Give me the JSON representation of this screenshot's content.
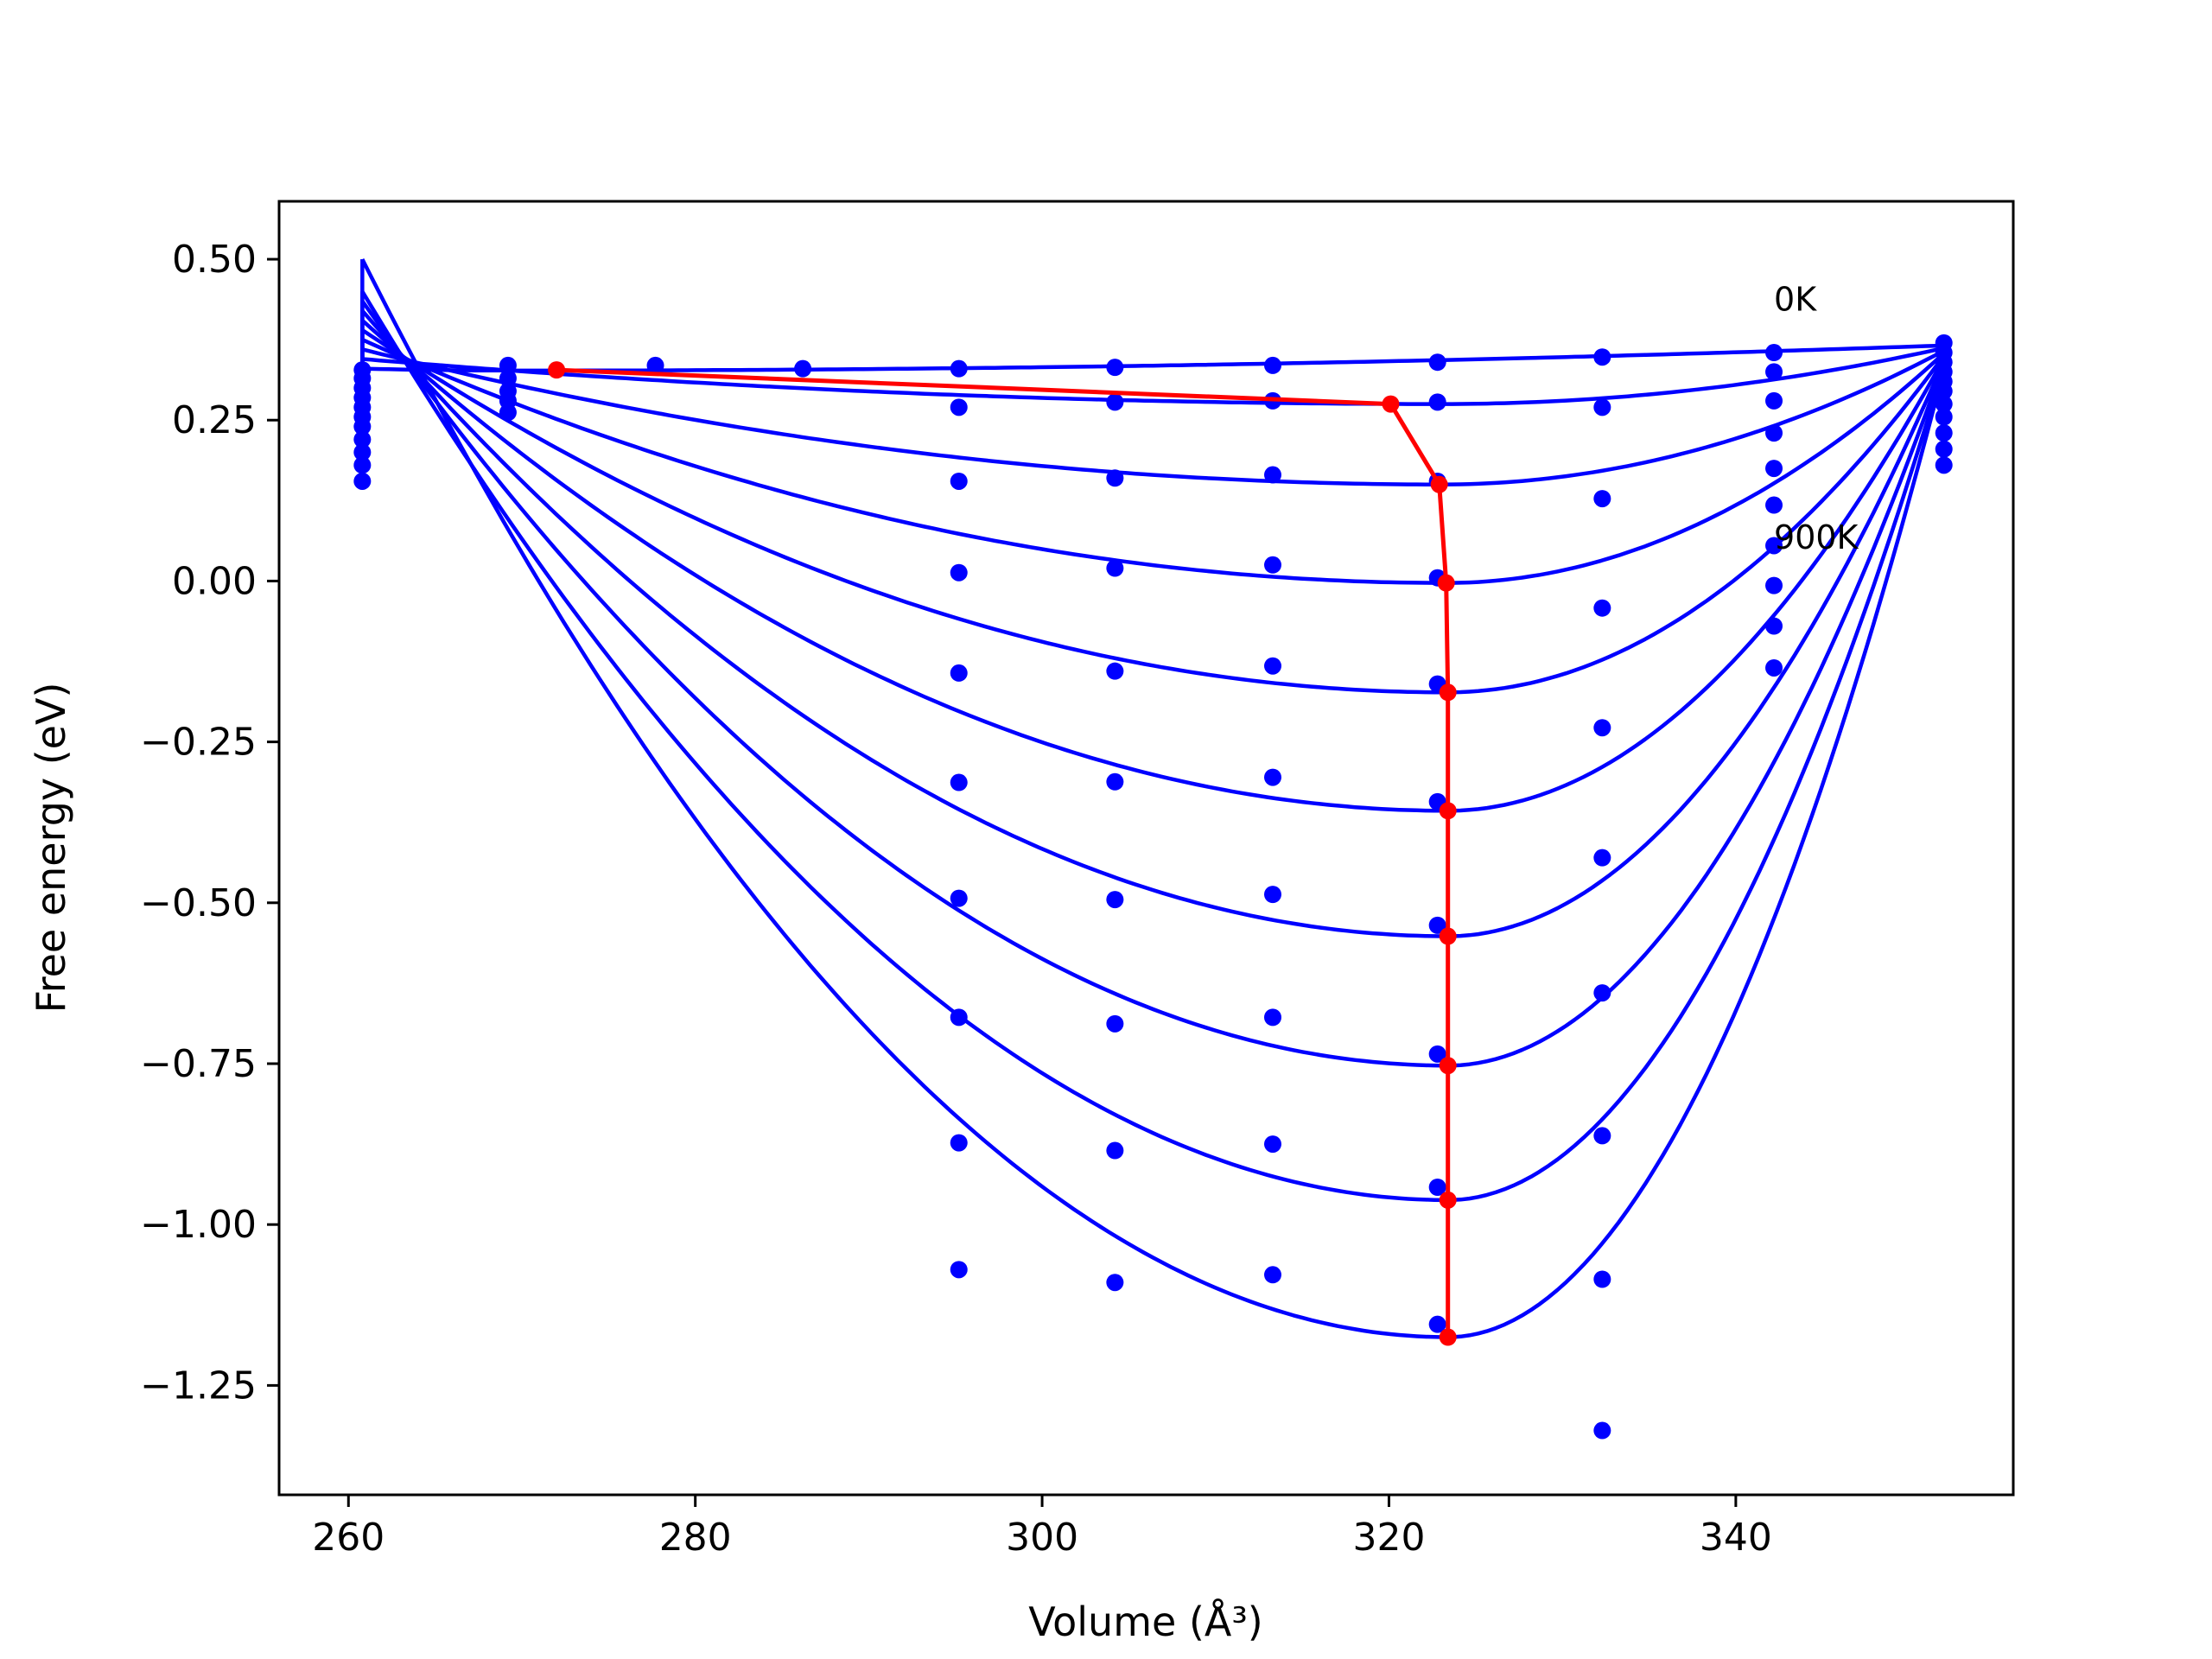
{
  "chart_data": {
    "type": "line",
    "xlabel": "Volume (Å³)",
    "ylabel": "Free energy (eV)",
    "xlim": [
      256,
      356
    ],
    "ylim": [
      -1.42,
      0.59
    ],
    "xticks": [
      260,
      280,
      300,
      320,
      340
    ],
    "yticks": [
      0.5,
      0.25,
      0.0,
      -0.25,
      -0.5,
      -0.75,
      -1.0,
      -1.25
    ],
    "xtick_labels": [
      "260",
      "280",
      "300",
      "320",
      "340"
    ],
    "ytick_labels": [
      "0.50",
      "0.25",
      "0.00",
      "−0.25",
      "−0.50",
      "−0.75",
      "−1.00",
      "−1.25"
    ],
    "grid": false,
    "annotations": [
      {
        "text": "0K",
        "x": 342.2,
        "y": 0.42
      },
      {
        "text": "900K",
        "x": 342.2,
        "y": 0.05
      }
    ],
    "curve_color": "#0000ff",
    "points_color": "#0000ff",
    "minimum_line_color": "#ff0000",
    "fitted_curves": [
      {
        "v0": 270.0,
        "e0": 0.327,
        "vleft": 260.8,
        "eleft": 0.33,
        "vright": 352.0,
        "eright": 0.366
      },
      {
        "v0": 323.0,
        "e0": 0.275,
        "vleft": 260.8,
        "eleft": 0.345,
        "vright": 352.0,
        "eright": 0.362
      },
      {
        "v0": 323.0,
        "e0": 0.15,
        "vleft": 260.8,
        "eleft": 0.36,
        "vright": 352.0,
        "eright": 0.358
      },
      {
        "v0": 323.3,
        "e0": -0.003,
        "vleft": 260.8,
        "eleft": 0.375,
        "vright": 352.0,
        "eright": 0.354
      },
      {
        "v0": 323.4,
        "e0": -0.173,
        "vleft": 260.8,
        "eleft": 0.39,
        "vright": 352.0,
        "eright": 0.35
      },
      {
        "v0": 323.4,
        "e0": -0.357,
        "vleft": 260.8,
        "eleft": 0.405,
        "vright": 352.0,
        "eright": 0.346
      },
      {
        "v0": 323.4,
        "e0": -0.552,
        "vleft": 260.8,
        "eleft": 0.42,
        "vright": 352.0,
        "eright": 0.342
      },
      {
        "v0": 323.4,
        "e0": -0.753,
        "vleft": 260.8,
        "eleft": 0.435,
        "vright": 352.0,
        "eright": 0.338
      },
      {
        "v0": 323.4,
        "e0": -0.962,
        "vleft": 260.8,
        "eleft": 0.45,
        "vright": 352.0,
        "eright": 0.334
      },
      {
        "v0": 323.4,
        "e0": -1.175,
        "vleft": 260.8,
        "eleft": 0.5,
        "vright": 352.0,
        "eright": 0.33
      }
    ],
    "data_points": [
      {
        "x": 260.8,
        "y": 0.328
      },
      {
        "x": 260.8,
        "y": 0.315
      },
      {
        "x": 260.8,
        "y": 0.3
      },
      {
        "x": 260.8,
        "y": 0.285
      },
      {
        "x": 260.8,
        "y": 0.27
      },
      {
        "x": 260.8,
        "y": 0.255
      },
      {
        "x": 260.8,
        "y": 0.24
      },
      {
        "x": 260.8,
        "y": 0.22
      },
      {
        "x": 260.8,
        "y": 0.2
      },
      {
        "x": 260.8,
        "y": 0.18
      },
      {
        "x": 260.8,
        "y": 0.155
      },
      {
        "x": 269.2,
        "y": 0.335
      },
      {
        "x": 269.2,
        "y": 0.315
      },
      {
        "x": 269.2,
        "y": 0.295
      },
      {
        "x": 269.2,
        "y": 0.28
      },
      {
        "x": 269.2,
        "y": 0.262
      },
      {
        "x": 277.7,
        "y": 0.335
      },
      {
        "x": 286.2,
        "y": 0.33
      },
      {
        "x": 295.2,
        "y": 0.33
      },
      {
        "x": 295.2,
        "y": 0.27
      },
      {
        "x": 295.2,
        "y": 0.155
      },
      {
        "x": 295.2,
        "y": 0.013
      },
      {
        "x": 295.2,
        "y": -0.143
      },
      {
        "x": 295.2,
        "y": -0.313
      },
      {
        "x": 295.2,
        "y": -0.493
      },
      {
        "x": 295.2,
        "y": -0.678
      },
      {
        "x": 295.2,
        "y": -0.873
      },
      {
        "x": 295.2,
        "y": -1.07
      },
      {
        "x": 304.2,
        "y": 0.332
      },
      {
        "x": 304.2,
        "y": 0.278
      },
      {
        "x": 304.2,
        "y": 0.16
      },
      {
        "x": 304.2,
        "y": 0.02
      },
      {
        "x": 304.2,
        "y": -0.14
      },
      {
        "x": 304.2,
        "y": -0.312
      },
      {
        "x": 304.2,
        "y": -0.495
      },
      {
        "x": 304.2,
        "y": -0.688
      },
      {
        "x": 304.2,
        "y": -0.885
      },
      {
        "x": 304.2,
        "y": -1.09
      },
      {
        "x": 313.3,
        "y": 0.335
      },
      {
        "x": 313.3,
        "y": 0.28
      },
      {
        "x": 313.3,
        "y": 0.165
      },
      {
        "x": 313.3,
        "y": 0.025
      },
      {
        "x": 313.3,
        "y": -0.132
      },
      {
        "x": 313.3,
        "y": -0.305
      },
      {
        "x": 313.3,
        "y": -0.487
      },
      {
        "x": 313.3,
        "y": -0.678
      },
      {
        "x": 313.3,
        "y": -0.875
      },
      {
        "x": 313.3,
        "y": -1.078
      },
      {
        "x": 322.8,
        "y": 0.34
      },
      {
        "x": 322.8,
        "y": 0.278
      },
      {
        "x": 322.8,
        "y": 0.155
      },
      {
        "x": 322.8,
        "y": 0.005
      },
      {
        "x": 322.8,
        "y": -0.16
      },
      {
        "x": 322.8,
        "y": -0.343
      },
      {
        "x": 322.8,
        "y": -0.535
      },
      {
        "x": 322.8,
        "y": -0.735
      },
      {
        "x": 322.8,
        "y": -0.942
      },
      {
        "x": 322.8,
        "y": -1.155
      },
      {
        "x": 332.3,
        "y": 0.348
      },
      {
        "x": 332.3,
        "y": 0.27
      },
      {
        "x": 332.3,
        "y": 0.128
      },
      {
        "x": 332.3,
        "y": -0.042
      },
      {
        "x": 332.3,
        "y": -0.228
      },
      {
        "x": 332.3,
        "y": -0.43
      },
      {
        "x": 332.3,
        "y": -0.64
      },
      {
        "x": 332.3,
        "y": -0.862
      },
      {
        "x": 332.3,
        "y": -1.085
      },
      {
        "x": 332.3,
        "y": -1.32
      },
      {
        "x": 342.2,
        "y": 0.355
      },
      {
        "x": 342.2,
        "y": 0.325
      },
      {
        "x": 342.2,
        "y": 0.28
      },
      {
        "x": 342.2,
        "y": 0.23
      },
      {
        "x": 342.2,
        "y": 0.175
      },
      {
        "x": 342.2,
        "y": 0.118
      },
      {
        "x": 342.2,
        "y": 0.055
      },
      {
        "x": 342.2,
        "y": -0.007
      },
      {
        "x": 342.2,
        "y": -0.07
      },
      {
        "x": 342.2,
        "y": -0.135
      },
      {
        "x": 352.0,
        "y": 0.37
      },
      {
        "x": 352.0,
        "y": 0.355
      },
      {
        "x": 352.0,
        "y": 0.34
      },
      {
        "x": 352.0,
        "y": 0.325
      },
      {
        "x": 352.0,
        "y": 0.31
      },
      {
        "x": 352.0,
        "y": 0.295
      },
      {
        "x": 352.0,
        "y": 0.275
      },
      {
        "x": 352.0,
        "y": 0.255
      },
      {
        "x": 352.0,
        "y": 0.23
      },
      {
        "x": 352.0,
        "y": 0.205
      },
      {
        "x": 352.0,
        "y": 0.18
      }
    ],
    "minimum_path": {
      "x": [
        272.0,
        320.1,
        322.9,
        323.3,
        323.4,
        323.4,
        323.4,
        323.4,
        323.4,
        323.4
      ],
      "y": [
        0.328,
        0.275,
        0.15,
        -0.003,
        -0.173,
        -0.357,
        -0.552,
        -0.753,
        -0.962,
        -1.175
      ]
    }
  }
}
